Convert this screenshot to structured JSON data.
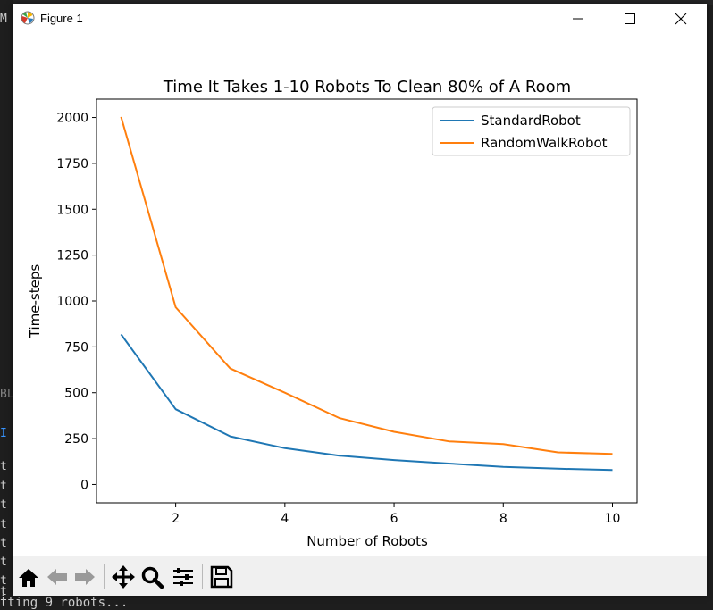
{
  "window": {
    "title": "Figure 1",
    "controls": [
      "minimize",
      "maximize",
      "close"
    ]
  },
  "background": {
    "terminal_line": "tting 9 robots...",
    "left_fragments": [
      "M",
      "BL",
      "I",
      "t",
      "t",
      "t",
      "t",
      "t",
      "t",
      "t",
      "t",
      "t"
    ]
  },
  "toolbar": {
    "buttons": [
      "home-icon",
      "back-arrow-icon",
      "forward-arrow-icon",
      "pan-icon",
      "zoom-icon",
      "configure-subplots-icon",
      "save-icon"
    ]
  },
  "chart_data": {
    "type": "line",
    "title": "Time It Takes 1-10 Robots To Clean 80% of A Room",
    "xlabel": "Number of Robots",
    "ylabel": "Time-steps",
    "x": [
      1,
      2,
      3,
      4,
      5,
      6,
      7,
      8,
      9,
      10
    ],
    "xticks": [
      2,
      4,
      6,
      8,
      10
    ],
    "yticks": [
      0,
      250,
      500,
      750,
      1000,
      1250,
      1500,
      1750,
      2000
    ],
    "xlim": [
      0.55,
      10.45
    ],
    "ylim": [
      -100,
      2100
    ],
    "legend_position": "upper right",
    "series": [
      {
        "name": "StandardRobot",
        "color": "#1f77b4",
        "values": [
          818,
          410,
          262,
          198,
          157,
          133,
          114,
          96,
          86,
          79
        ]
      },
      {
        "name": "RandomWalkRobot",
        "color": "#ff7f0e",
        "values": [
          2003,
          966,
          632,
          500,
          362,
          287,
          235,
          220,
          175,
          166
        ]
      }
    ]
  }
}
